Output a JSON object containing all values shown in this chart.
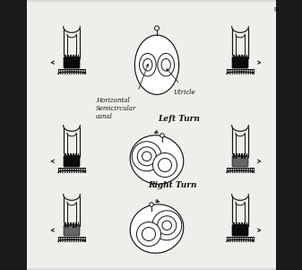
{
  "background_color": "#d8d8d8",
  "center_bg": "#f0eeea",
  "fig_width": 3.37,
  "fig_height": 3.01,
  "dpi": 100,
  "labels": {
    "horizontal_semicircular_canal": "Horizontal\nSemicircular\ncanal",
    "utricle": "Utricle",
    "left_turn": "Left Turn",
    "right_turn": "Right Turn",
    "right_label": "Ri"
  },
  "line_color": "#111111",
  "dark_fill": "#0a0a0a",
  "gray_fill": "#888888",
  "light_gray": "#cccccc"
}
